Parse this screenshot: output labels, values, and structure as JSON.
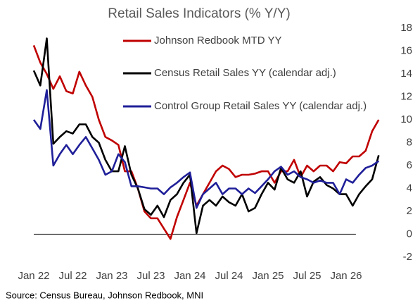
{
  "chart_data": {
    "type": "line",
    "title": "Retail Sales Indicators (% Y/Y)",
    "source": "Source: Census Bureau, Johnson Redbook, MNI",
    "categories": [
      "Jan 22",
      null,
      null,
      null,
      null,
      null,
      "Jul 22",
      null,
      null,
      null,
      null,
      null,
      "Jan 23",
      null,
      null,
      null,
      null,
      null,
      "Jul 23",
      null,
      null,
      null,
      null,
      null,
      "Jan 24",
      null,
      null,
      null,
      null,
      null,
      "Jul 24",
      null,
      null,
      null,
      null,
      null,
      "Jan 25",
      null,
      null,
      null,
      null,
      null,
      "Jul 25",
      null,
      null,
      null,
      null,
      null,
      "Jan 26",
      null,
      null,
      null,
      null,
      null
    ],
    "series": [
      {
        "name": "Johnson Redbook MTD YY",
        "color": "#c00000",
        "values": [
          16.5,
          15.0,
          14.0,
          12.7,
          13.8,
          12.5,
          12.3,
          14.2,
          13.0,
          12.0,
          10.0,
          8.5,
          8.2,
          7.8,
          5.5,
          5.5,
          4.0,
          2.0,
          1.4,
          1.4,
          0.5,
          -0.4,
          1.5,
          3.0,
          4.5,
          2.5,
          3.5,
          4.5,
          5.5,
          6.0,
          5.7,
          5.0,
          5.2,
          5.2,
          5.3,
          5.5,
          5.5,
          4.5,
          5.5,
          5.5,
          6.5,
          5.0,
          6.0,
          5.5,
          6.0,
          6.0,
          5.5,
          6.3,
          6.2,
          6.8,
          6.8,
          7.3,
          9.0,
          10.0
        ]
      },
      {
        "name": "Census Retail Sales YY (calendar adj.)",
        "color": "#000000",
        "values": [
          14.3,
          13.0,
          17.1,
          7.9,
          8.5,
          9.0,
          8.8,
          9.6,
          9.6,
          8.5,
          8.0,
          6.5,
          5.5,
          5.5,
          7.7,
          5.2,
          4.0,
          2.2,
          1.7,
          2.5,
          1.5,
          3.0,
          3.5,
          4.5,
          5.2,
          0.1,
          2.5,
          3.0,
          2.5,
          3.3,
          2.8,
          2.5,
          3.5,
          2.0,
          2.3,
          3.5,
          4.5,
          3.9,
          5.8,
          4.8,
          4.5,
          5.5,
          3.3,
          4.6,
          5.0,
          4.3,
          4.0,
          3.5,
          3.5,
          2.5,
          3.5,
          4.2,
          4.8,
          6.9
        ]
      },
      {
        "name": "Control Group Retail Sales YY (calendar adj.)",
        "color": "#1f1f99",
        "values": [
          10.0,
          9.2,
          12.6,
          6.0,
          7.0,
          7.8,
          7.0,
          7.8,
          8.5,
          7.5,
          6.5,
          5.2,
          5.5,
          7.0,
          6.3,
          4.2,
          4.2,
          4.1,
          4.0,
          4.0,
          3.5,
          4.1,
          4.5,
          5.0,
          5.4,
          2.3,
          3.5,
          4.0,
          4.5,
          3.5,
          4.0,
          4.0,
          3.5,
          4.0,
          3.6,
          4.2,
          4.8,
          5.5,
          5.9,
          5.2,
          5.5,
          5.0,
          4.8,
          4.5,
          4.7,
          4.5,
          4.5,
          3.5,
          4.8,
          4.5,
          5.2,
          5.8,
          6.0,
          6.4
        ]
      }
    ],
    "ylim": [
      -2,
      18
    ],
    "yticks": [
      -2,
      0,
      2,
      4,
      6,
      8,
      10,
      12,
      14,
      16,
      18
    ],
    "zero_line": true,
    "grid": false
  }
}
